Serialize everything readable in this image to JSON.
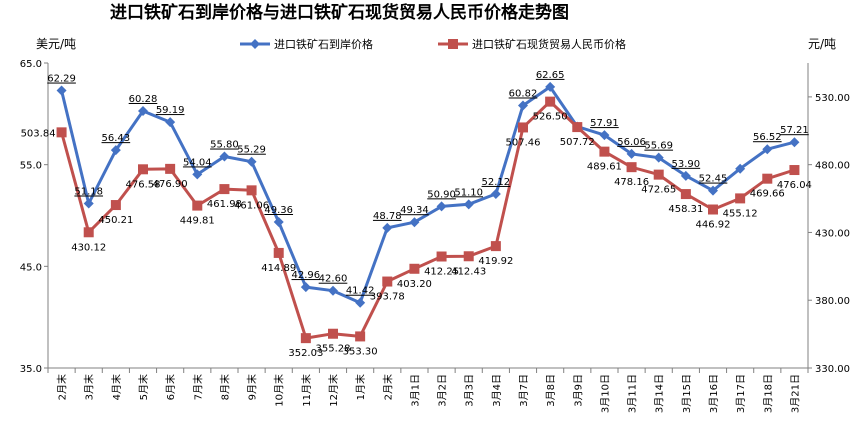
{
  "chart_data": {
    "type": "line",
    "title": "进口铁矿石到岸价格与进口铁矿石现货贸易人民币价格走势图",
    "left_unit": "美元/吨",
    "right_unit": "元/吨",
    "categories": [
      "2月末",
      "3月末",
      "4月末",
      "5月末",
      "6月末",
      "7月末",
      "8月末",
      "9月末",
      "10月末",
      "11月末",
      "12月末",
      "1月末",
      "2月末",
      "3月1日",
      "3月2日",
      "3月3日",
      "3月4日",
      "3月7日",
      "3月8日",
      "3月9日",
      "3月10日",
      "3月11日",
      "3月14日",
      "3月15日",
      "3月16日",
      "3月17日",
      "3月18日",
      "3月21日"
    ],
    "left_axis": {
      "min": 35.0,
      "max": 65.0,
      "ticks": [
        "35.0",
        "45.0",
        "55.0",
        "65.0"
      ]
    },
    "right_axis": {
      "min": 330.0,
      "max": 555.0,
      "ticks": [
        "330.00",
        "380.00",
        "430.00",
        "480.00",
        "530.00"
      ]
    },
    "series": [
      {
        "name": "进口铁矿石到岸价格",
        "axis": "left",
        "color": "#4472C4",
        "marker": "diamond",
        "values": [
          62.29,
          51.18,
          56.43,
          60.28,
          59.19,
          54.04,
          55.8,
          55.29,
          49.36,
          42.96,
          42.6,
          41.42,
          48.78,
          49.34,
          50.9,
          51.1,
          52.12,
          60.82,
          62.65,
          58.74,
          57.91,
          56.06,
          55.69,
          53.9,
          52.45,
          54.6,
          56.52,
          57.21
        ],
        "labels": [
          "62.29",
          "51.18",
          "56.43",
          "60.28",
          "59.19",
          "54.04",
          "55.80",
          "55.29",
          "49.36",
          "42.96",
          "42.60",
          "41.42",
          "48.78",
          "49.34",
          "50.90",
          "51.10",
          "52.12",
          "60.82",
          "62.65",
          "",
          "57.91",
          "56.06",
          "55.69",
          "53.90",
          "52.45",
          "",
          "56.52",
          "57.21"
        ]
      },
      {
        "name": "进口铁矿石现货贸易人民币价格",
        "axis": "right",
        "color": "#C0504D",
        "marker": "square",
        "values": [
          503.84,
          430.12,
          450.21,
          476.58,
          476.9,
          449.81,
          461.98,
          461.06,
          414.89,
          352.03,
          355.28,
          353.3,
          393.78,
          403.2,
          412.25,
          412.43,
          419.92,
          507.46,
          526.5,
          507.72,
          489.61,
          478.16,
          472.65,
          458.31,
          446.92,
          455.12,
          469.66,
          476.04
        ],
        "labels": [
          "503.84",
          "430.12",
          "450.21",
          "476.58",
          "476.90",
          "449.81",
          "461.98",
          "461.06",
          "414.89",
          "352.03",
          "355.28",
          "353.30",
          "393.78",
          "403.20",
          "412.25",
          "412.43",
          "419.92",
          "507.46",
          "526.50",
          "507.72",
          "489.61",
          "478.16",
          "472.65",
          "458.31",
          "446.92",
          "455.12",
          "469.66",
          "476.04"
        ]
      }
    ],
    "legend": {
      "placement": "top"
    },
    "grid": false
  }
}
